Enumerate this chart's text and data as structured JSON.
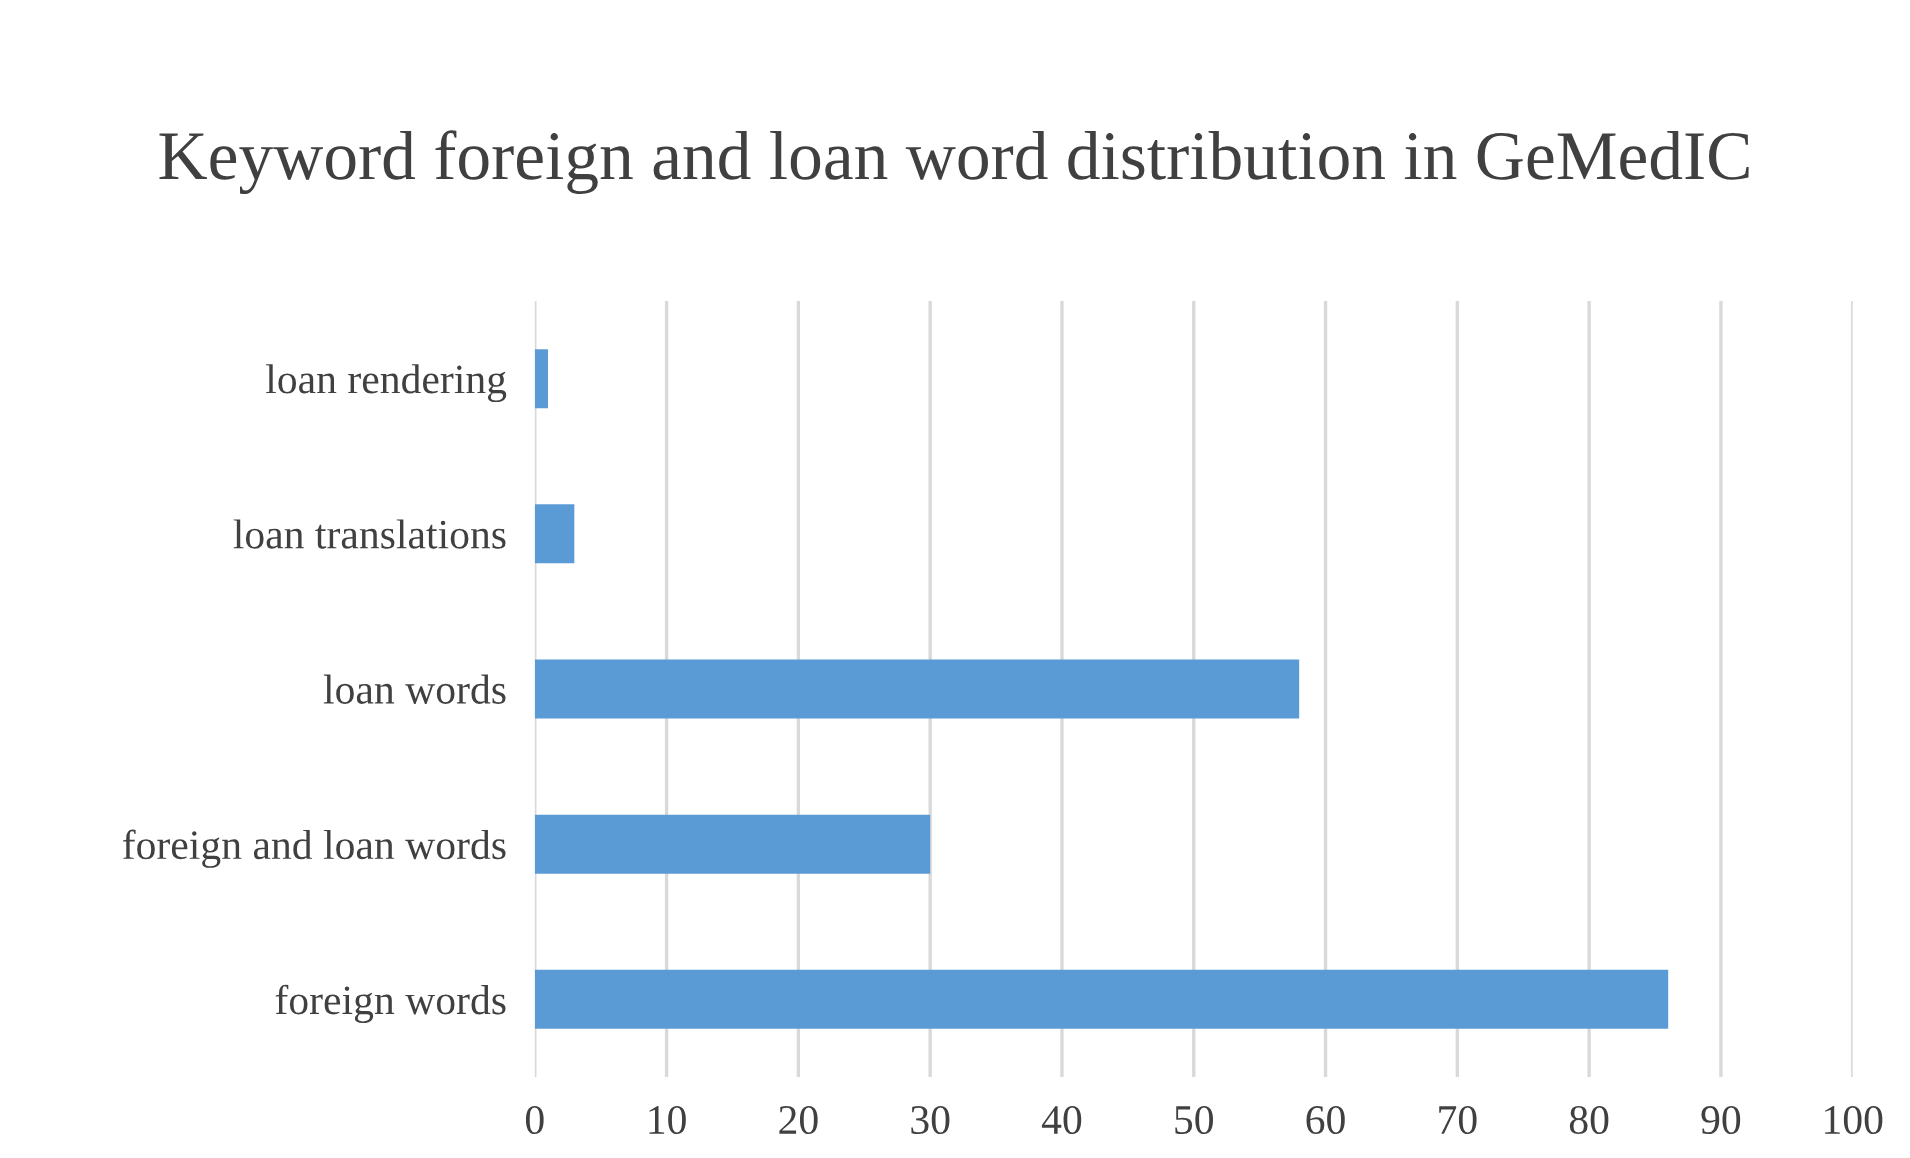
{
  "chart_data": {
    "type": "bar",
    "orientation": "horizontal",
    "title": "Keyword foreign and loan word distribution in GeMedIC",
    "categories": [
      "loan rendering",
      "loan translations",
      "loan words",
      "foreign and loan words",
      "foreign words"
    ],
    "values": [
      1,
      3,
      58,
      30,
      86
    ],
    "color": "#5b9bd5",
    "xlim": [
      0,
      100
    ],
    "xticks": [
      0,
      10,
      20,
      30,
      40,
      50,
      60,
      70,
      80,
      90,
      100
    ],
    "grid": "x"
  }
}
